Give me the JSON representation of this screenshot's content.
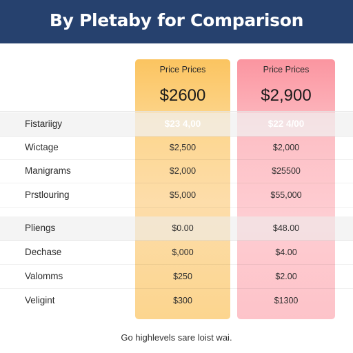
{
  "header": {
    "title": "By  Pletaby for Comparison"
  },
  "plans": [
    {
      "label": "Price Prices",
      "price": "$2600",
      "accent": "#fbc460"
    },
    {
      "label": "Price Prices",
      "price": "$2,900",
      "accent": "#fb95a0"
    }
  ],
  "rows": [
    {
      "label": "Fistariigy",
      "a": "$23 4,00",
      "b": "$22 4/00"
    },
    {
      "label": "Wictage",
      "a": "$2,500",
      "b": "$2,000"
    },
    {
      "label": "Manigrams",
      "a": "$2,000",
      "b": "$25500"
    },
    {
      "label": "Prstlouring",
      "a": "$5,000",
      "b": "$55,000"
    },
    {
      "label": "Pliengs",
      "a": "$0.00",
      "b": "$48.00"
    },
    {
      "label": "Dechase",
      "a": "$,000",
      "b": "$4.00"
    },
    {
      "label": "Valomms",
      "a": "$250",
      "b": "$2.00"
    },
    {
      "label": "Veligint",
      "a": "$300",
      "b": "$1300"
    }
  ],
  "footer": "Go highlevels sare loist wai."
}
